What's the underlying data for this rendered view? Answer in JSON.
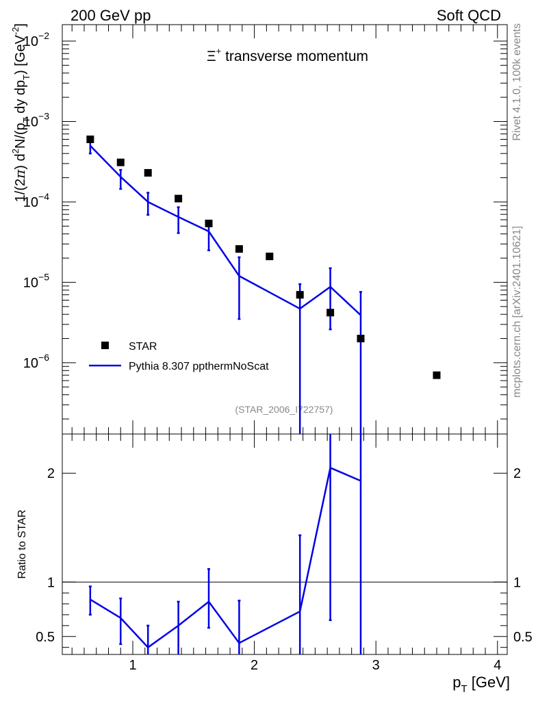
{
  "header": {
    "left": "200 GeV pp",
    "right": "Soft QCD"
  },
  "side": {
    "rivet": "Rivet 4.1.0,  100k events",
    "mcplots": "mcplots.cern.ch [arXiv:2401.10621]"
  },
  "chart_data": [
    {
      "type": "scatter+line",
      "title": "Ξ+ transverse momentum",
      "title_symbol": "Ξ",
      "title_sup": "+",
      "title_rest": " transverse momentum",
      "ylabel": "1/(2π)  d²N/(p_T dy dp_T) [GeV⁻²]",
      "ylabel_parts": [
        "1/(2",
        "π",
        ")  d",
        "2",
        "N/(p",
        "T",
        " dy dp",
        "T",
        ") [GeV",
        "-2",
        "]"
      ],
      "yscale": "log",
      "ylim": [
        1.3e-07,
        0.016
      ],
      "xlim": [
        0.42,
        4.08
      ],
      "ytick_labels": [
        {
          "value": 1e-06,
          "base": "10",
          "exp": "−6"
        },
        {
          "value": 1e-05,
          "base": "10",
          "exp": "−5"
        },
        {
          "value": 0.0001,
          "base": "10",
          "exp": "−4"
        },
        {
          "value": 0.001,
          "base": "10",
          "exp": "−3"
        },
        {
          "value": 0.01,
          "base": "10",
          "exp": "−2"
        }
      ],
      "legend": {
        "placement": "bottom-left",
        "entries": [
          {
            "name": "STAR",
            "style": "square-marker"
          },
          {
            "name": "Pythia 8.307 ppthermNoScat",
            "style": "line",
            "color": "#0000e6"
          }
        ]
      },
      "analysis_id": "(STAR_2006_I722757)",
      "series": [
        {
          "name": "STAR",
          "color": "#000000",
          "x": [
            0.65,
            0.9,
            1.125,
            1.375,
            1.625,
            1.875,
            2.125,
            2.375,
            2.625,
            2.875,
            3.5
          ],
          "y": [
            0.0006,
            0.00031,
            0.00023,
            0.00011,
            5.4e-05,
            2.6e-05,
            2.1e-05,
            7e-06,
            4.2e-06,
            2e-06,
            7e-07
          ]
        },
        {
          "name": "Pythia 8.307 ppthermNoScat",
          "color": "#0000e6",
          "x": [
            0.65,
            0.9,
            1.125,
            1.375,
            1.625,
            1.875,
            2.375,
            2.625,
            2.875
          ],
          "y": [
            0.0005,
            0.000205,
            0.0001,
            6.5e-05,
            4.3e-05,
            1.2e-05,
            4.7e-06,
            8.8e-06,
            3.9e-06
          ],
          "yerr_low": [
            0.0004,
            0.000145,
            6.9e-05,
            4.1e-05,
            2.5e-05,
            3.5e-06,
            1e-08,
            2.6e-06,
            1e-08
          ],
          "yerr_high": [
            0.0006,
            0.00025,
            0.00013,
            8.6e-05,
            5.7e-05,
            2.05e-05,
            9.5e-06,
            1.5e-05,
            7.6e-06
          ]
        }
      ]
    },
    {
      "type": "line",
      "ylabel": "Ratio to STAR",
      "xlabel": "p_T [GeV]",
      "xlabel_parts": [
        "p",
        "T",
        " [GeV]"
      ],
      "xlim": [
        0.42,
        4.08
      ],
      "ylim": [
        0.335,
        2.36
      ],
      "xtick_labels": [
        "1",
        "2",
        "3",
        "4"
      ],
      "xtick_values": [
        1,
        2,
        3,
        4
      ],
      "ytick_labels": [
        "0.5",
        "1",
        "2"
      ],
      "ytick_values": [
        0.5,
        1,
        2
      ],
      "reference_line": 1,
      "series": [
        {
          "name": "Pythia 8.307 ppthermNoScat / STAR",
          "color": "#0000e6",
          "x": [
            0.65,
            0.9,
            1.125,
            1.375,
            1.625,
            1.875,
            2.375,
            2.625,
            2.875
          ],
          "y": [
            0.84,
            0.67,
            0.4,
            0.6,
            0.82,
            0.44,
            0.73,
            2.05,
            1.93
          ],
          "yerr_low": [
            0.7,
            0.43,
            0.3,
            0.3,
            0.58,
            0.3,
            0.3,
            0.65,
            0.3
          ],
          "yerr_high": [
            0.96,
            0.85,
            0.6,
            0.82,
            1.12,
            0.83,
            1.43,
            2.5,
            2.5
          ]
        }
      ]
    }
  ]
}
